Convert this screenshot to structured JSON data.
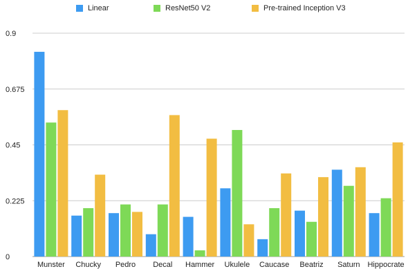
{
  "chart_data": {
    "type": "bar",
    "title": "",
    "xlabel": "",
    "ylabel": "",
    "ylim": [
      0,
      0.9
    ],
    "yticks": [
      "0",
      "0.225",
      "0.45",
      "0.675",
      "0.9"
    ],
    "grid": true,
    "legend_position": "top",
    "categories": [
      "Munster",
      "Chucky",
      "Pedro",
      "Decal",
      "Hammer",
      "Ukulele",
      "Caucase",
      "Beatriz",
      "Saturn",
      "Hippocrate"
    ],
    "series": [
      {
        "name": "Linear",
        "color": "#3d9bf1",
        "values": [
          0.825,
          0.165,
          0.175,
          0.09,
          0.16,
          0.275,
          0.07,
          0.185,
          0.35,
          0.175
        ]
      },
      {
        "name": "ResNet50 V2",
        "color": "#7ed957",
        "values": [
          0.54,
          0.195,
          0.21,
          0.21,
          0.025,
          0.51,
          0.195,
          0.14,
          0.285,
          0.235
        ]
      },
      {
        "name": "Pre-trained Inception V3",
        "color": "#f2bd42",
        "values": [
          0.59,
          0.33,
          0.18,
          0.57,
          0.475,
          0.13,
          0.335,
          0.32,
          0.36,
          0.46
        ]
      }
    ]
  }
}
